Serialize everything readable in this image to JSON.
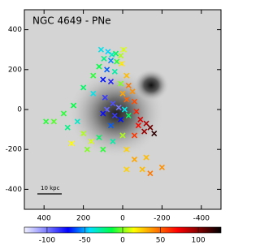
{
  "chart_data": {
    "type": "scatter",
    "title": "NGC 4649 - PNe",
    "scalebar_label": "10 kpc",
    "xlim": [
      500,
      -500
    ],
    "ylim": [
      -500,
      500
    ],
    "xticks": [
      400,
      200,
      0,
      -200,
      -400
    ],
    "yticks": [
      -400,
      -200,
      0,
      200,
      400
    ],
    "series": [
      {
        "x": [
          110,
          75,
          55,
          35,
          10,
          -5,
          95,
          60,
          30,
          5,
          120,
          80,
          40,
          150,
          100,
          60,
          10,
          -20,
          -30,
          -50,
          0,
          -20,
          -60,
          200,
          150,
          90,
          50,
          20,
          80,
          40,
          10,
          100,
          -10,
          60,
          -30,
          -70,
          -90,
          -120,
          -140,
          -160,
          -110,
          -80,
          -60,
          250,
          300,
          350,
          280,
          230,
          200,
          160,
          120,
          260,
          180,
          100,
          50,
          0,
          -20,
          -60,
          -100,
          -140,
          -200,
          -20,
          -120,
          390
        ],
        "y": [
          300,
          290,
          275,
          280,
          270,
          300,
          255,
          245,
          240,
          230,
          215,
          200,
          190,
          170,
          150,
          140,
          130,
          170,
          120,
          90,
          80,
          50,
          40,
          110,
          80,
          60,
          30,
          10,
          0,
          -30,
          -50,
          -20,
          0,
          -80,
          -30,
          -10,
          -50,
          -70,
          -90,
          -120,
          -110,
          -80,
          -130,
          20,
          -20,
          -60,
          -90,
          -60,
          -120,
          -160,
          -140,
          -170,
          -200,
          -200,
          -160,
          -130,
          -200,
          -250,
          -300,
          -320,
          -290,
          -300,
          -240,
          -60
        ],
        "c": [
          -40,
          -45,
          -35,
          -20,
          5,
          10,
          -25,
          -55,
          -10,
          20,
          -15,
          -60,
          -30,
          -10,
          -70,
          -80,
          0,
          30,
          45,
          40,
          35,
          50,
          55,
          -20,
          -40,
          -85,
          -90,
          -100,
          -95,
          -85,
          -70,
          -75,
          -40,
          -60,
          -20,
          65,
          80,
          90,
          105,
          120,
          95,
          70,
          60,
          -15,
          -10,
          -5,
          -25,
          -35,
          5,
          10,
          -20,
          15,
          0,
          -10,
          -30,
          5,
          25,
          35,
          30,
          45,
          40,
          25,
          30,
          -10
        ]
      }
    ],
    "colorbar": {
      "clim": [
        -130,
        130
      ],
      "ticks": [
        -100,
        -50,
        0,
        50,
        100
      ],
      "colors": [
        "#f0f0ff",
        "#8080ff",
        "#0000ff",
        "#00e0ff",
        "#00ff40",
        "#ffff00",
        "#ff8000",
        "#ff0000",
        "#800000",
        "#000000"
      ]
    }
  }
}
